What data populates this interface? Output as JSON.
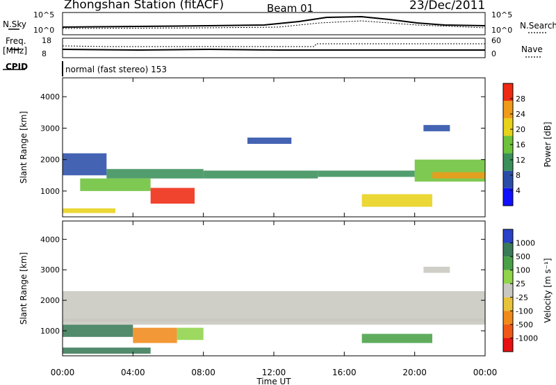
{
  "header": {
    "station": "Zhongshan Station (fitACF)",
    "beam": "Beam 01",
    "date": "23/Dec/2011"
  },
  "side_labels": {
    "nsky": "N.Sky",
    "freq": "Freq.",
    "freq_unit": "[MHz]",
    "cpid": "CPID",
    "nsearch": "N.Search",
    "nave": "Nave"
  },
  "small_axes": {
    "nsky_ticks": [
      "10^5",
      "10^0"
    ],
    "nsearch_ticks": [
      "10^5",
      "10^0"
    ],
    "freq_ticks": [
      "18",
      "8"
    ],
    "nave_ticks": [
      "60",
      "0"
    ]
  },
  "cpid_text": "normal (fast stereo) 153",
  "chart_data": [
    {
      "type": "heatmap",
      "panel": "power",
      "ylabel": "Slant Range [km]",
      "xlabel": "",
      "ylim": [
        180,
        4600
      ],
      "yticks": [
        1000,
        2000,
        3000,
        4000
      ],
      "xticks": [
        "00:00",
        "04:00",
        "08:00",
        "12:00",
        "16:00",
        "20:00",
        "00:00"
      ],
      "colorbar_label": "Power [dB]",
      "colorbar_ticks": [
        "4",
        "8",
        "12",
        "16",
        "20",
        "24",
        "28"
      ],
      "colors": [
        "#1010ff",
        "#2a4ea8",
        "#3a8f5a",
        "#6cc23a",
        "#e8d21a",
        "#f09a1a",
        "#ee2a12"
      ],
      "regions": [
        {
          "t": [
            0.0,
            2.5
          ],
          "r": [
            1500,
            2200
          ],
          "level": 1
        },
        {
          "t": [
            2.5,
            8.0
          ],
          "r": [
            1400,
            1700
          ],
          "level": 2
        },
        {
          "t": [
            8.0,
            14.5
          ],
          "r": [
            1400,
            1650
          ],
          "level": 2
        },
        {
          "t": [
            14.5,
            20.0
          ],
          "r": [
            1450,
            1650
          ],
          "level": 2
        },
        {
          "t": [
            20.0,
            24.0
          ],
          "r": [
            1300,
            2000
          ],
          "level": 3
        },
        {
          "t": [
            21.0,
            24.0
          ],
          "r": [
            1400,
            1600
          ],
          "level": 5
        },
        {
          "t": [
            1.0,
            5.0
          ],
          "r": [
            1000,
            1400
          ],
          "level": 3
        },
        {
          "t": [
            5.0,
            7.5
          ],
          "r": [
            600,
            1100
          ],
          "level": 6
        },
        {
          "t": [
            0.0,
            3.0
          ],
          "r": [
            300,
            450
          ],
          "level": 4
        },
        {
          "t": [
            17.0,
            21.0
          ],
          "r": [
            500,
            900
          ],
          "level": 4
        },
        {
          "t": [
            10.5,
            13.0
          ],
          "r": [
            2500,
            2700
          ],
          "level": 1
        },
        {
          "t": [
            20.5,
            22.0
          ],
          "r": [
            2900,
            3100
          ],
          "level": 1
        }
      ]
    },
    {
      "type": "heatmap",
      "panel": "velocity",
      "ylabel": "Slant Range [km]",
      "xlabel": "Time UT",
      "ylim": [
        180,
        4600
      ],
      "yticks": [
        1000,
        2000,
        3000,
        4000
      ],
      "xticks": [
        "00:00",
        "04:00",
        "08:00",
        "12:00",
        "16:00",
        "20:00",
        "00:00"
      ],
      "colorbar_label": "Velocity [m s^-1]",
      "colorbar_ticks": [
        "1000",
        "500",
        "100",
        "25",
        "-25",
        "-100",
        "-500",
        "-1000"
      ],
      "colors": [
        "#2a40c8",
        "#3a7a58",
        "#4aa048",
        "#8fd44a",
        "#c8c8c0",
        "#e8c23a",
        "#f08a1a",
        "#f05818",
        "#e81010"
      ],
      "regions": [
        {
          "t": [
            0.0,
            24.0
          ],
          "r": [
            1300,
            2300
          ],
          "level": 4
        },
        {
          "t": [
            0.0,
            24.0
          ],
          "r": [
            1200,
            1400
          ],
          "level": 4
        },
        {
          "t": [
            0.0,
            4.0
          ],
          "r": [
            800,
            1200
          ],
          "level": 1
        },
        {
          "t": [
            4.0,
            6.5
          ],
          "r": [
            600,
            1100
          ],
          "level": 6
        },
        {
          "t": [
            6.5,
            8.0
          ],
          "r": [
            700,
            1100
          ],
          "level": 3
        },
        {
          "t": [
            0.0,
            5.0
          ],
          "r": [
            250,
            450
          ],
          "level": 1
        },
        {
          "t": [
            17.0,
            21.0
          ],
          "r": [
            600,
            900
          ],
          "level": 2
        },
        {
          "t": [
            20.5,
            22.0
          ],
          "r": [
            2900,
            3100
          ],
          "level": 4
        }
      ]
    }
  ]
}
